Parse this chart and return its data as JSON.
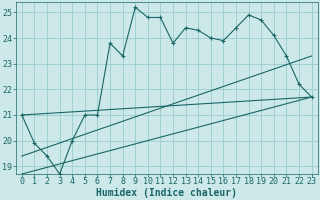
{
  "xlabel": "Humidex (Indice chaleur)",
  "xlim": [
    -0.5,
    23.5
  ],
  "ylim": [
    18.7,
    25.4
  ],
  "yticks": [
    19,
    20,
    21,
    22,
    23,
    24,
    25
  ],
  "xticks": [
    0,
    1,
    2,
    3,
    4,
    5,
    6,
    7,
    8,
    9,
    10,
    11,
    12,
    13,
    14,
    15,
    16,
    17,
    18,
    19,
    20,
    21,
    22,
    23
  ],
  "bg_color": "#cce8e8",
  "grid_color": "#99cccc",
  "line_color": "#1a6666",
  "line1_x": [
    0,
    1,
    2,
    3,
    4,
    5,
    6,
    7,
    8,
    9,
    10,
    11,
    12,
    13,
    14,
    15,
    16,
    17,
    18,
    19,
    20,
    21,
    22,
    23
  ],
  "line1_y": [
    21.0,
    19.9,
    19.4,
    18.7,
    20.0,
    21.0,
    21.0,
    23.8,
    23.3,
    25.2,
    24.8,
    24.8,
    23.8,
    24.4,
    24.3,
    24.0,
    23.9,
    24.4,
    24.9,
    24.7,
    24.1,
    23.3,
    22.2,
    21.7
  ],
  "line2_x": [
    0,
    23
  ],
  "line2_y": [
    21.0,
    21.7
  ],
  "line3_x": [
    0,
    23
  ],
  "line3_y": [
    19.4,
    23.3
  ],
  "line4_x": [
    0,
    23
  ],
  "line4_y": [
    18.7,
    21.7
  ],
  "tick_fontsize": 6.0,
  "xlabel_fontsize": 7.0
}
